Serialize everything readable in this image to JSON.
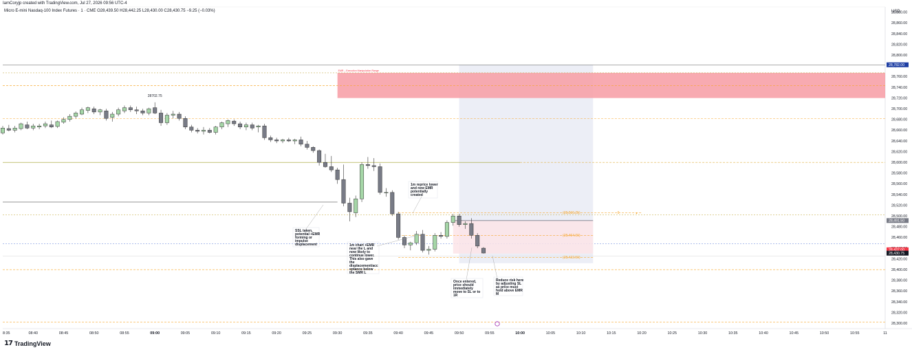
{
  "credit": "IamCoryjp created with TradingView.com, Jul 27, 2026 09:56 UTC-4",
  "symbol": {
    "name": "Micro E-mini Nasdaq-100 Index Futures · 1 · CME",
    "open_label": "O",
    "open": "28,439.50",
    "high_label": "H",
    "high": "28,442.25",
    "low_label": "L",
    "low": "28,430.00",
    "close_label": "C",
    "close": "28,430.75",
    "change": "−9.25 (−0.03%)"
  },
  "currency": "USD",
  "brand": "TradingView",
  "brand_icon": "tradingview-logo-icon",
  "colors": {
    "up": "#a5d6a7",
    "down": "#787b86",
    "zone": "#f7a1a8",
    "session": "#eceef6",
    "orange": "#f7a72d",
    "accent_blue": "#1e3ea3",
    "accent_red": "#f23645"
  },
  "y_axis": {
    "min": 28290,
    "max": 28890,
    "ticks": [
      "28,880.00",
      "28,860.00",
      "28,840.00",
      "28,820.00",
      "28,800.00",
      "28,780.00",
      "28,760.00",
      "28,740.00",
      "28,720.00",
      "28,700.00",
      "28,680.00",
      "28,660.00",
      "28,640.00",
      "28,620.00",
      "28,600.00",
      "28,580.00",
      "28,560.00",
      "28,540.00",
      "28,520.00",
      "28,500.00",
      "28,480.00",
      "28,460.00",
      "28,440.00",
      "28,420.00",
      "28,400.00",
      "28,380.00",
      "28,360.00",
      "28,340.00",
      "28,320.00",
      "28,300.00"
    ],
    "tick_values": [
      28880,
      28860,
      28840,
      28820,
      28800,
      28780,
      28760,
      28740,
      28720,
      28700,
      28680,
      28660,
      28640,
      28620,
      28600,
      28580,
      28560,
      28540,
      28520,
      28500,
      28480,
      28460,
      28440,
      28420,
      28400,
      28380,
      28360,
      28340,
      28320,
      28300
    ],
    "badges": [
      {
        "text": "28,782.00",
        "value": 28782,
        "color": "#1e3ea3"
      },
      {
        "text": "28,491.50",
        "value": 28491.5,
        "color": "#787b86"
      },
      {
        "text": "28,437.00",
        "value": 28437,
        "color": "#f23645"
      },
      {
        "text": "28,430.75",
        "value": 28430.75,
        "color": "#131722"
      }
    ]
  },
  "x_axis": {
    "labels": [
      "8:35",
      "08:40",
      "08:45",
      "08:50",
      "08:55",
      "09:00",
      "09:05",
      "09:10",
      "09:15",
      "09:20",
      "09:25",
      "09:30",
      "09:35",
      "09:40",
      "09:45",
      "09:50",
      "09:55",
      "10:00",
      "10:05",
      "10:10",
      "10:15",
      "10:20",
      "10:25",
      "10:30",
      "10:35",
      "10:40",
      "10:45",
      "10:50",
      "10:55",
      "11"
    ],
    "bold": [
      "09:00",
      "10:00"
    ]
  },
  "chart_data": {
    "type": "candlestick",
    "title": "Micro E-mini Nasdaq-100 Index Futures · 1 · CME",
    "interval": "1m",
    "ylim": [
      28290,
      28890
    ],
    "x_start": "08:35",
    "x_end": "11:00",
    "candles": [
      {
        "t": "08:35",
        "o": 28655,
        "h": 28668,
        "l": 28652,
        "c": 28664
      },
      {
        "t": "08:36",
        "o": 28663,
        "h": 28670,
        "l": 28658,
        "c": 28660
      },
      {
        "t": "08:37",
        "o": 28660,
        "h": 28668,
        "l": 28656,
        "c": 28664
      },
      {
        "t": "08:38",
        "o": 28663,
        "h": 28674,
        "l": 28660,
        "c": 28672
      },
      {
        "t": "08:39",
        "o": 28670,
        "h": 28676,
        "l": 28662,
        "c": 28664
      },
      {
        "t": "08:40",
        "o": 28664,
        "h": 28672,
        "l": 28660,
        "c": 28668
      },
      {
        "t": "08:41",
        "o": 28666,
        "h": 28672,
        "l": 28662,
        "c": 28668
      },
      {
        "t": "08:42",
        "o": 28668,
        "h": 28676,
        "l": 28664,
        "c": 28672
      },
      {
        "t": "08:43",
        "o": 28670,
        "h": 28678,
        "l": 28664,
        "c": 28666
      },
      {
        "t": "08:44",
        "o": 28667,
        "h": 28678,
        "l": 28664,
        "c": 28676
      },
      {
        "t": "08:45",
        "o": 28675,
        "h": 28684,
        "l": 28672,
        "c": 28680
      },
      {
        "t": "08:46",
        "o": 28680,
        "h": 28690,
        "l": 28676,
        "c": 28686
      },
      {
        "t": "08:47",
        "o": 28686,
        "h": 28695,
        "l": 28682,
        "c": 28692
      },
      {
        "t": "08:48",
        "o": 28690,
        "h": 28702,
        "l": 28688,
        "c": 28698
      },
      {
        "t": "08:49",
        "o": 28697,
        "h": 28704,
        "l": 28692,
        "c": 28702
      },
      {
        "t": "08:50",
        "o": 28700,
        "h": 28704,
        "l": 28690,
        "c": 28694
      },
      {
        "t": "08:51",
        "o": 28694,
        "h": 28700,
        "l": 28688,
        "c": 28698
      },
      {
        "t": "08:52",
        "o": 28696,
        "h": 28700,
        "l": 28678,
        "c": 28682
      },
      {
        "t": "08:53",
        "o": 28684,
        "h": 28694,
        "l": 28676,
        "c": 28690
      },
      {
        "t": "08:54",
        "o": 28690,
        "h": 28702,
        "l": 28686,
        "c": 28698
      },
      {
        "t": "08:55",
        "o": 28696,
        "h": 28706,
        "l": 28692,
        "c": 28702
      },
      {
        "t": "08:56",
        "o": 28702,
        "h": 28706,
        "l": 28694,
        "c": 28698
      },
      {
        "t": "08:57",
        "o": 28698,
        "h": 28704,
        "l": 28690,
        "c": 28696
      },
      {
        "t": "08:58",
        "o": 28696,
        "h": 28700,
        "l": 28688,
        "c": 28692
      },
      {
        "t": "08:59",
        "o": 28692,
        "h": 28702,
        "l": 28688,
        "c": 28700
      },
      {
        "t": "09:00",
        "o": 28702,
        "h": 28712,
        "l": 28690,
        "c": 28692
      },
      {
        "t": "09:01",
        "o": 28692,
        "h": 28698,
        "l": 28668,
        "c": 28674
      },
      {
        "t": "09:02",
        "o": 28674,
        "h": 28692,
        "l": 28670,
        "c": 28688
      },
      {
        "t": "09:03",
        "o": 28688,
        "h": 28696,
        "l": 28682,
        "c": 28690
      },
      {
        "t": "09:04",
        "o": 28690,
        "h": 28694,
        "l": 28678,
        "c": 28682
      },
      {
        "t": "09:05",
        "o": 28682,
        "h": 28686,
        "l": 28662,
        "c": 28666
      },
      {
        "t": "09:06",
        "o": 28666,
        "h": 28670,
        "l": 28656,
        "c": 28660
      },
      {
        "t": "09:07",
        "o": 28660,
        "h": 28664,
        "l": 28654,
        "c": 28658
      },
      {
        "t": "09:08",
        "o": 28658,
        "h": 28666,
        "l": 28652,
        "c": 28660
      },
      {
        "t": "09:09",
        "o": 28660,
        "h": 28664,
        "l": 28654,
        "c": 28656
      },
      {
        "t": "09:10",
        "o": 28656,
        "h": 28668,
        "l": 28652,
        "c": 28666
      },
      {
        "t": "09:11",
        "o": 28666,
        "h": 28676,
        "l": 28662,
        "c": 28674
      },
      {
        "t": "09:12",
        "o": 28672,
        "h": 28680,
        "l": 28666,
        "c": 28678
      },
      {
        "t": "09:13",
        "o": 28677,
        "h": 28680,
        "l": 28668,
        "c": 28672
      },
      {
        "t": "09:14",
        "o": 28672,
        "h": 28676,
        "l": 28662,
        "c": 28666
      },
      {
        "t": "09:15",
        "o": 28666,
        "h": 28674,
        "l": 28660,
        "c": 28670
      },
      {
        "t": "09:16",
        "o": 28670,
        "h": 28674,
        "l": 28660,
        "c": 28664
      },
      {
        "t": "09:17",
        "o": 28666,
        "h": 28670,
        "l": 28656,
        "c": 28668
      },
      {
        "t": "09:18",
        "o": 28668,
        "h": 28672,
        "l": 28642,
        "c": 28646
      },
      {
        "t": "09:19",
        "o": 28646,
        "h": 28650,
        "l": 28638,
        "c": 28642
      },
      {
        "t": "09:20",
        "o": 28642,
        "h": 28646,
        "l": 28636,
        "c": 28640
      },
      {
        "t": "09:21",
        "o": 28640,
        "h": 28644,
        "l": 28636,
        "c": 28642
      },
      {
        "t": "09:22",
        "o": 28642,
        "h": 28646,
        "l": 28638,
        "c": 28640
      },
      {
        "t": "09:23",
        "o": 28640,
        "h": 28644,
        "l": 28634,
        "c": 28642
      },
      {
        "t": "09:24",
        "o": 28642,
        "h": 28648,
        "l": 28630,
        "c": 28634
      },
      {
        "t": "09:25",
        "o": 28634,
        "h": 28640,
        "l": 28624,
        "c": 28628
      },
      {
        "t": "09:26",
        "o": 28628,
        "h": 28630,
        "l": 28618,
        "c": 28622
      },
      {
        "t": "09:27",
        "o": 28622,
        "h": 28624,
        "l": 28594,
        "c": 28600
      },
      {
        "t": "09:28",
        "o": 28600,
        "h": 28616,
        "l": 28590,
        "c": 28592
      },
      {
        "t": "09:29",
        "o": 28592,
        "h": 28612,
        "l": 28582,
        "c": 28586
      },
      {
        "t": "09:30",
        "o": 28586,
        "h": 28590,
        "l": 28560,
        "c": 28568
      },
      {
        "t": "09:31",
        "o": 28568,
        "h": 28596,
        "l": 28518,
        "c": 28524
      },
      {
        "t": "09:32",
        "o": 28524,
        "h": 28534,
        "l": 28490,
        "c": 28508
      },
      {
        "t": "09:33",
        "o": 28506,
        "h": 28538,
        "l": 28498,
        "c": 28532
      },
      {
        "t": "09:34",
        "o": 28532,
        "h": 28600,
        "l": 28526,
        "c": 28596
      },
      {
        "t": "09:35",
        "o": 28596,
        "h": 28610,
        "l": 28588,
        "c": 28594
      },
      {
        "t": "09:36",
        "o": 28594,
        "h": 28608,
        "l": 28584,
        "c": 28592
      },
      {
        "t": "09:37",
        "o": 28592,
        "h": 28598,
        "l": 28540,
        "c": 28544
      },
      {
        "t": "09:38",
        "o": 28544,
        "h": 28552,
        "l": 28536,
        "c": 28544
      },
      {
        "t": "09:39",
        "o": 28544,
        "h": 28548,
        "l": 28500,
        "c": 28504
      },
      {
        "t": "09:40",
        "o": 28504,
        "h": 28508,
        "l": 28456,
        "c": 28460
      },
      {
        "t": "09:41",
        "o": 28460,
        "h": 28464,
        "l": 28440,
        "c": 28446
      },
      {
        "t": "09:42",
        "o": 28446,
        "h": 28452,
        "l": 28436,
        "c": 28450
      },
      {
        "t": "09:43",
        "o": 28450,
        "h": 28472,
        "l": 28446,
        "c": 28466
      },
      {
        "t": "09:44",
        "o": 28466,
        "h": 28474,
        "l": 28432,
        "c": 28436
      },
      {
        "t": "09:45",
        "o": 28436,
        "h": 28444,
        "l": 28428,
        "c": 28438
      },
      {
        "t": "09:46",
        "o": 28438,
        "h": 28468,
        "l": 28434,
        "c": 28464
      },
      {
        "t": "09:47",
        "o": 28464,
        "h": 28470,
        "l": 28458,
        "c": 28462
      },
      {
        "t": "09:48",
        "o": 28462,
        "h": 28492,
        "l": 28458,
        "c": 28488
      },
      {
        "t": "09:49",
        "o": 28488,
        "h": 28504,
        "l": 28482,
        "c": 28500
      },
      {
        "t": "09:50",
        "o": 28500,
        "h": 28504,
        "l": 28480,
        "c": 28484
      },
      {
        "t": "09:51",
        "o": 28484,
        "h": 28490,
        "l": 28476,
        "c": 28486
      },
      {
        "t": "09:52",
        "o": 28486,
        "h": 28496,
        "l": 28458,
        "c": 28464
      },
      {
        "t": "09:53",
        "o": 28464,
        "h": 28468,
        "l": 28440,
        "c": 28444
      },
      {
        "t": "09:54",
        "o": 28440,
        "h": 28442,
        "l": 28430,
        "c": 28431
      }
    ]
  },
  "annotations": {
    "high_label": "28702.75",
    "emr_label": "EMR – Execution Manipulation Range",
    "pos_target": "(28,506.25)",
    "pos_entry": "(28,464.00)",
    "pos_stop": "(28,422.50)",
    "pos_rr": "0",
    "notes": [
      {
        "id": "note-ssl",
        "text": "SSL taken,\npotential +EMR\nforming or\nimpulse\ndisplacement"
      },
      {
        "id": "note-1m-chart",
        "text": "1m chart +EMR\nnear the L and\nnow likely to\ncontinue lower.\nThis also gave\nthe\ndisplacement/acc\neptance below\nthe SMR L"
      },
      {
        "id": "note-reprice",
        "text": "1m reprice lower\nand new EMR\npotentially\ncreated"
      },
      {
        "id": "note-entered",
        "text": "Once entered,\nprice should\nimmediately\nmove to SL or to\n1R"
      },
      {
        "id": "note-reduce-risk",
        "text": "Reduce risk here\nby adjusting SL\nas price must\nhold above EMR\nM"
      }
    ]
  }
}
